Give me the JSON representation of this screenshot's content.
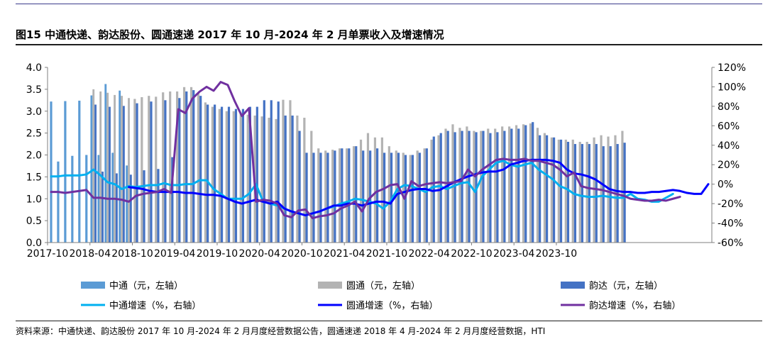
{
  "figure": {
    "title": "图15 中通快递、韵达股份、圆通速递 2017 年 10 月-2024 年 2 月单票收入及增速情况",
    "source": "资料来源：中通快递、韵达股份 2017 年 10 月-2024 年 2 月月度经营数据公告，圆通速递 2018 年 4 月-2024 年 2 月月度经营数据，HTI"
  },
  "chart_data": {
    "type": "bar",
    "x_tick_labels": [
      "2017-10",
      "2018-04",
      "2018-10",
      "2019-04",
      "2019-10",
      "2020-04",
      "2020-10",
      "2021-04",
      "2021-10",
      "2022-04",
      "2022-10",
      "2023-04",
      "2023-10"
    ],
    "y_left": {
      "ticks": [
        "0.0",
        "0.5",
        "1.0",
        "1.5",
        "2.0",
        "2.5",
        "3.0",
        "3.5",
        "4.0"
      ],
      "ylim": [
        0,
        4
      ]
    },
    "y_right": {
      "ticks": [
        "-60%",
        "-40%",
        "-20%",
        "0%",
        "20%",
        "40%",
        "60%",
        "80%",
        "100%",
        "120%"
      ],
      "ylim": [
        -60,
        120
      ],
      "unit": "%"
    },
    "grid": false,
    "legend_position": "bottom",
    "series": [
      {
        "name": "中通（元，左轴）",
        "kind": "bar",
        "color": "#5b9bd5",
        "values": [
          3.22,
          1.85,
          3.23,
          1.98,
          3.24,
          2.0,
          3.36,
          2.0,
          3.62,
          2.05,
          3.47,
          1.76,
          null,
          null,
          null,
          null,
          null,
          null,
          null,
          null,
          null,
          null,
          null,
          null,
          null,
          null,
          null,
          null,
          null,
          null,
          null,
          null,
          null,
          null,
          null,
          null,
          null,
          null,
          null,
          null,
          null,
          null,
          null,
          null,
          null,
          null,
          null,
          null,
          null,
          null,
          null,
          null,
          null,
          null,
          null,
          null,
          null,
          null,
          null,
          null,
          null,
          null,
          null,
          null,
          null,
          null,
          null,
          null,
          null,
          null,
          null,
          null,
          null,
          null,
          null,
          null,
          null
        ]
      },
      {
        "name": "圆通（元，左轴）",
        "kind": "bar",
        "color": "#b3b3b3",
        "values": [
          null,
          null,
          null,
          null,
          null,
          null,
          3.5,
          3.45,
          3.42,
          3.37,
          3.35,
          3.3,
          3.28,
          3.32,
          3.35,
          3.33,
          3.43,
          3.45,
          3.45,
          3.55,
          3.55,
          3.42,
          3.2,
          3.1,
          3.05,
          3.0,
          3.0,
          2.95,
          2.92,
          2.9,
          2.88,
          2.85,
          2.82,
          3.26,
          3.25,
          2.9,
          2.85,
          2.55,
          2.15,
          2.1,
          2.12,
          2.15,
          2.15,
          2.2,
          2.35,
          2.5,
          2.4,
          2.4,
          2.2,
          2.1,
          2.05,
          2.0,
          2.1,
          2.15,
          2.35,
          2.45,
          2.6,
          2.7,
          2.62,
          2.65,
          2.55,
          2.55,
          2.6,
          2.6,
          2.65,
          2.65,
          2.68,
          2.7,
          2.72,
          2.62,
          2.5,
          2.4,
          2.35,
          2.35,
          2.35,
          2.3,
          2.3,
          2.4,
          2.45,
          2.42,
          2.45,
          2.55
        ]
      },
      {
        "name": "韵达（元，左轴）",
        "kind": "bar",
        "color": "#4472c4",
        "values": [
          null,
          null,
          null,
          null,
          null,
          null,
          3.15,
          1.62,
          3.1,
          1.58,
          3.12,
          1.55,
          3.18,
          1.65,
          3.22,
          1.68,
          3.25,
          1.95,
          3.3,
          3.45,
          3.48,
          3.35,
          3.15,
          3.15,
          3.1,
          3.1,
          3.05,
          3.05,
          3.1,
          3.1,
          3.25,
          3.25,
          3.22,
          2.9,
          2.9,
          2.55,
          2.05,
          2.05,
          2.05,
          2.05,
          2.1,
          2.15,
          2.15,
          2.2,
          2.1,
          2.1,
          2.15,
          2.05,
          2.05,
          2.05,
          2.0,
          2.0,
          2.05,
          2.15,
          2.42,
          2.5,
          2.55,
          2.52,
          2.55,
          2.55,
          2.52,
          2.55,
          2.5,
          2.52,
          2.55,
          2.6,
          2.6,
          2.68,
          2.75,
          2.45,
          2.45,
          2.4,
          2.35,
          2.3,
          2.25,
          2.25,
          2.25,
          2.25,
          2.2,
          2.2,
          2.25,
          2.28
        ]
      },
      {
        "name": "中通增速（%，右轴）",
        "kind": "line",
        "color": "#00b0f0",
        "values": [
          8,
          8,
          9,
          9,
          9,
          10,
          15,
          9,
          2,
          0,
          -5,
          -2,
          -3,
          -2,
          -1,
          -1,
          1,
          -1,
          -1,
          0,
          0,
          4,
          4,
          -5,
          -10,
          -15,
          -15,
          -15,
          -10,
          0,
          -18,
          -20,
          -22,
          -25,
          -28,
          -30,
          -32,
          -30,
          -28,
          -25,
          -23,
          -20,
          -18,
          -15,
          -16,
          -18,
          -20,
          -25,
          -18,
          -5,
          -1,
          -2,
          -5,
          -8,
          -3,
          -2,
          -5,
          -2,
          1,
          2,
          -8,
          8,
          15,
          22,
          24,
          20,
          18,
          20,
          22,
          15,
          10,
          5,
          -2,
          -5,
          -10,
          -12,
          -13,
          -13,
          -12,
          -13,
          -14,
          -14,
          -10,
          -15,
          -16,
          -18,
          -18,
          -14,
          -10
        ]
      },
      {
        "name": "圆通增速（%，右轴）",
        "kind": "line",
        "color": "#0000ff",
        "values": [
          null,
          null,
          null,
          null,
          null,
          null,
          null,
          null,
          null,
          null,
          null,
          -3,
          -4,
          -5,
          -7,
          -8,
          -8,
          -8,
          -8,
          -9,
          -9,
          -10,
          -11,
          -11,
          -12,
          -15,
          -18,
          -20,
          -18,
          -16,
          -18,
          -20,
          -18,
          -25,
          -28,
          -30,
          -32,
          -30,
          -28,
          -25,
          -22,
          -22,
          -20,
          -20,
          -22,
          -20,
          -18,
          -18,
          -20,
          -10,
          -8,
          -6,
          -5,
          -5,
          -7,
          -6,
          -2,
          2,
          5,
          8,
          10,
          12,
          13,
          13,
          15,
          20,
          22,
          24,
          25,
          25,
          25,
          24,
          22,
          15,
          11,
          10,
          8,
          5,
          0,
          -5,
          -7,
          -8,
          -8,
          -9,
          -9,
          -8,
          -8,
          -7,
          -6,
          -7,
          -9,
          -10,
          -10,
          0
        ]
      },
      {
        "name": "韵达增速（%，右轴）",
        "kind": "line",
        "color": "#7030a0",
        "values": [
          -8,
          -8,
          -9,
          -8,
          -7,
          -6,
          -14,
          -14,
          -15,
          -15,
          -16,
          -18,
          -12,
          -10,
          -9,
          -8,
          -5,
          -9,
          77,
          73,
          88,
          95,
          100,
          96,
          105,
          102,
          85,
          70,
          78,
          -18,
          -16,
          -17,
          -20,
          -32,
          -34,
          -27,
          -26,
          -35,
          -33,
          -32,
          -30,
          -25,
          -22,
          -18,
          -28,
          -15,
          -8,
          -5,
          -1,
          0,
          -15,
          3,
          -2,
          0,
          1,
          2,
          1,
          2,
          3,
          15,
          8,
          15,
          20,
          25,
          26,
          25,
          25,
          26,
          24,
          24,
          22,
          20,
          15,
          8,
          12,
          -2,
          -4,
          -5,
          -6,
          -8,
          -10,
          -12,
          -15,
          -16,
          -17,
          -17,
          -16,
          -17,
          -15,
          -13
        ]
      }
    ]
  }
}
